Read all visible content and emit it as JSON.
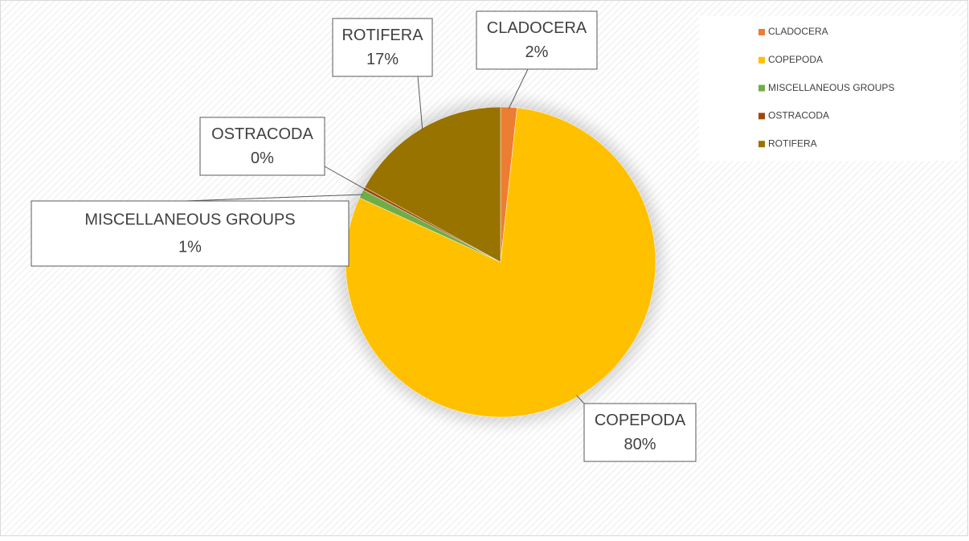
{
  "chart_data": {
    "type": "pie",
    "categories": [
      "CLADOCERA",
      "COPEPODA",
      "MISCELLANEOUS GROUPS",
      "OSTRACODA",
      "ROTIFERA"
    ],
    "values": [
      1.7,
      80.1,
      0.9,
      0.3,
      17.0
    ],
    "value_labels": [
      "2%",
      "80%",
      "1%",
      "0%",
      "17%"
    ],
    "colors": [
      "#ED7D31",
      "#FFC000",
      "#70AD47",
      "#9E480E",
      "#997300"
    ],
    "legend": "top-right"
  }
}
